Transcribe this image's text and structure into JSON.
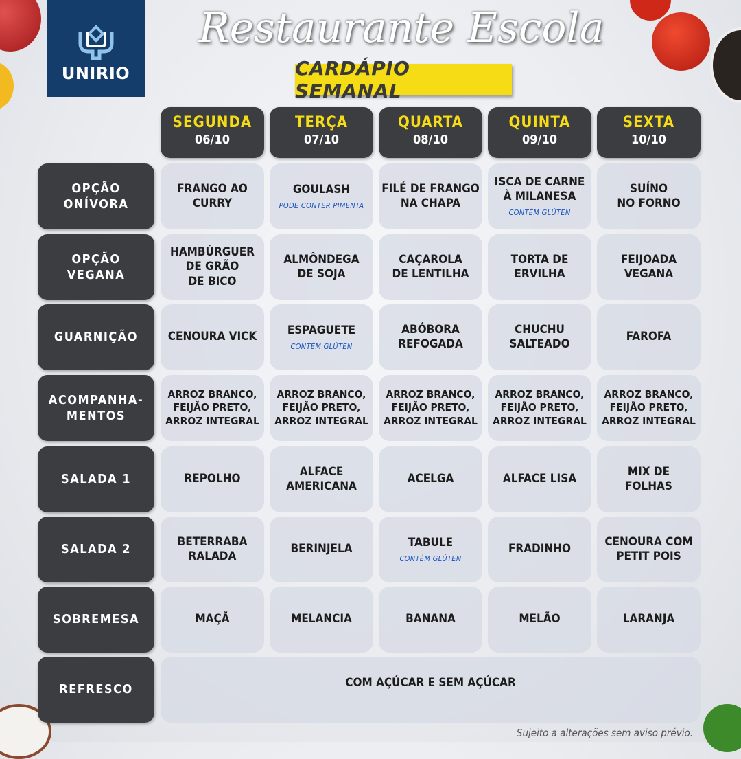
{
  "logo_text": "UNIRIO",
  "title": "Restaurante Escola",
  "subtitle": "CARDÁPIO SEMANAL",
  "days": [
    {
      "name": "SEGUNDA",
      "date": "06/10"
    },
    {
      "name": "TERÇA",
      "date": "07/10"
    },
    {
      "name": "QUARTA",
      "date": "08/10"
    },
    {
      "name": "QUINTA",
      "date": "09/10"
    },
    {
      "name": "SEXTA",
      "date": "10/10"
    }
  ],
  "rows": [
    {
      "label": "OPÇÃO\nONÍVORA",
      "cells": [
        {
          "text": "FRANGO AO\nCURRY"
        },
        {
          "text": "GOULASH",
          "note": "PODE CONTER PIMENTA"
        },
        {
          "text": "FILÉ DE FRANGO\nNA CHAPA"
        },
        {
          "text": "ISCA DE CARNE\nÀ MILANESA",
          "note": "CONTÉM GLÚTEN"
        },
        {
          "text": "SUÍNO\nNO FORNO"
        }
      ]
    },
    {
      "label": "OPÇÃO\nVEGANA",
      "cells": [
        {
          "text": "HAMBÚRGUER\nDE GRÃO\nDE BICO"
        },
        {
          "text": "ALMÔNDEGA\nDE SOJA"
        },
        {
          "text": "CAÇAROLA\nDE LENTILHA"
        },
        {
          "text": "TORTA DE\nERVILHA"
        },
        {
          "text": "FEIJOADA\nVEGANA"
        }
      ]
    },
    {
      "label": "GUARNIÇÃO",
      "cells": [
        {
          "text": "CENOURA VICK"
        },
        {
          "text": "ESPAGUETE",
          "note": "CONTÉM GLÚTEN"
        },
        {
          "text": "ABÓBORA\nREFOGADA"
        },
        {
          "text": "CHUCHU\nSALTEADO"
        },
        {
          "text": "FAROFA"
        }
      ]
    },
    {
      "label": "ACOMPANHA-\nMENTOS",
      "cells": [
        {
          "text": "ARROZ BRANCO,\nFEIJÃO PRETO,\nARROZ INTEGRAL"
        },
        {
          "text": "ARROZ BRANCO,\nFEIJÃO PRETO,\nARROZ INTEGRAL"
        },
        {
          "text": "ARROZ BRANCO,\nFEIJÃO PRETO,\nARROZ INTEGRAL"
        },
        {
          "text": "ARROZ BRANCO,\nFEIJÃO PRETO,\nARROZ INTEGRAL"
        },
        {
          "text": "ARROZ BRANCO,\nFEIJÃO PRETO,\nARROZ INTEGRAL"
        }
      ]
    },
    {
      "label": "SALADA 1",
      "cells": [
        {
          "text": "REPOLHO"
        },
        {
          "text": "ALFACE\nAMERICANA"
        },
        {
          "text": "ACELGA"
        },
        {
          "text": "ALFACE LISA"
        },
        {
          "text": "MIX DE\nFOLHAS"
        }
      ]
    },
    {
      "label": "SALADA 2",
      "cells": [
        {
          "text": "BETERRABA\nRALADA"
        },
        {
          "text": "BERINJELA"
        },
        {
          "text": "TABULE",
          "note": "CONTÉM GLÚTEN"
        },
        {
          "text": "FRADINHO"
        },
        {
          "text": "CENOURA COM\nPETIT POIS"
        }
      ]
    },
    {
      "label": "SOBREMESA",
      "cells": [
        {
          "text": "MAÇÃ"
        },
        {
          "text": "MELANCIA"
        },
        {
          "text": "BANANA"
        },
        {
          "text": "MELÃO"
        },
        {
          "text": "LARANJA"
        }
      ]
    },
    {
      "label": "REFRESCO",
      "merged": "COM AÇÚCAR E SEM AÇÚCAR"
    }
  ],
  "footer": "Sujeito a alterações sem aviso prévio.",
  "colors": {
    "brand_blue": "#143d6b",
    "highlight_yellow": "#f5dc14",
    "header_dark": "#3c3d41",
    "note_blue": "#1a55c0"
  }
}
